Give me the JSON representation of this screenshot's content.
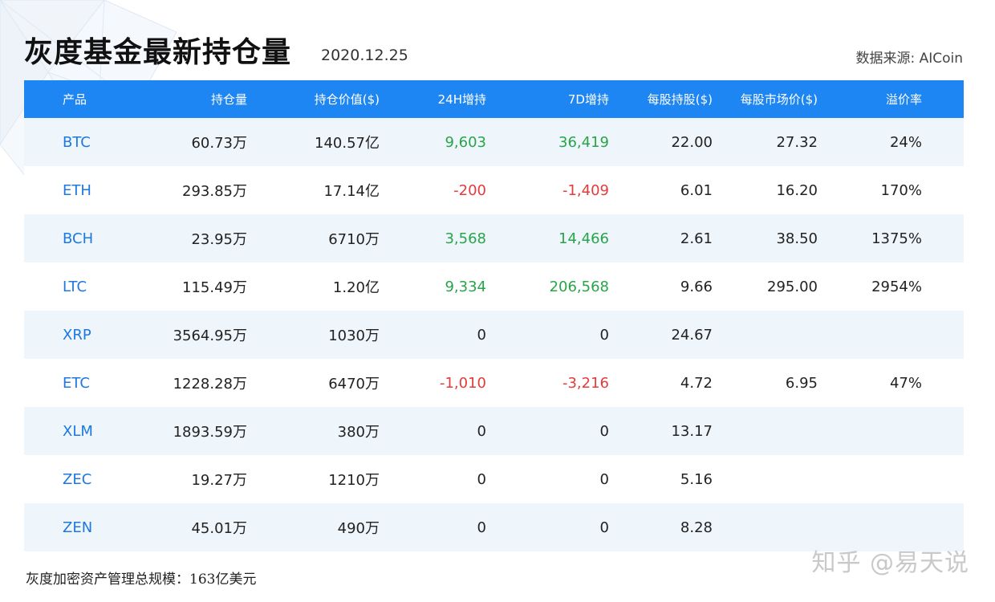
{
  "header": {
    "title": "灰度基金最新持仓量",
    "date": "2020.12.25",
    "source": "数据来源: AICoin"
  },
  "table": {
    "columns": [
      "产品",
      "持仓量",
      "持仓价值($)",
      "24H增持",
      "7D增持",
      "每股持股($)",
      "每股市场价($)",
      "溢价率"
    ],
    "rows": [
      {
        "product": "BTC",
        "holding": "60.73万",
        "value": "140.57亿",
        "h24": "9,603",
        "d7": "36,419",
        "per_share": "22.00",
        "market_price": "27.32",
        "premium": "24%",
        "trend": "pos"
      },
      {
        "product": "ETH",
        "holding": "293.85万",
        "value": "17.14亿",
        "h24": "-200",
        "d7": "-1,409",
        "per_share": "6.01",
        "market_price": "16.20",
        "premium": "170%",
        "trend": "neg"
      },
      {
        "product": "BCH",
        "holding": "23.95万",
        "value": "6710万",
        "h24": "3,568",
        "d7": "14,466",
        "per_share": "2.61",
        "market_price": "38.50",
        "premium": "1375%",
        "trend": "pos"
      },
      {
        "product": "LTC",
        "holding": "115.49万",
        "value": "1.20亿",
        "h24": "9,334",
        "d7": "206,568",
        "per_share": "9.66",
        "market_price": "295.00",
        "premium": "2954%",
        "trend": "pos"
      },
      {
        "product": "XRP",
        "holding": "3564.95万",
        "value": "1030万",
        "h24": "0",
        "d7": "0",
        "per_share": "24.67",
        "market_price": "",
        "premium": "",
        "trend": "zero"
      },
      {
        "product": "ETC",
        "holding": "1228.28万",
        "value": "6470万",
        "h24": "-1,010",
        "d7": "-3,216",
        "per_share": "4.72",
        "market_price": "6.95",
        "premium": "47%",
        "trend": "neg"
      },
      {
        "product": "XLM",
        "holding": "1893.59万",
        "value": "380万",
        "h24": "0",
        "d7": "0",
        "per_share": "13.17",
        "market_price": "",
        "premium": "",
        "trend": "zero"
      },
      {
        "product": "ZEC",
        "holding": "19.27万",
        "value": "1210万",
        "h24": "0",
        "d7": "0",
        "per_share": "5.16",
        "market_price": "",
        "premium": "",
        "trend": "zero"
      },
      {
        "product": "ZEN",
        "holding": "45.01万",
        "value": "490万",
        "h24": "0",
        "d7": "0",
        "per_share": "8.28",
        "market_price": "",
        "premium": "",
        "trend": "zero"
      }
    ]
  },
  "footer": {
    "text": "灰度加密资产管理总规模：163亿美元"
  },
  "watermark": "知乎 @易天说",
  "colors": {
    "header_bg": "#1d86f2",
    "product_text": "#1d78e0",
    "positive": "#28a44a",
    "negative": "#e43b3b",
    "stripe": "#eef5fb"
  }
}
